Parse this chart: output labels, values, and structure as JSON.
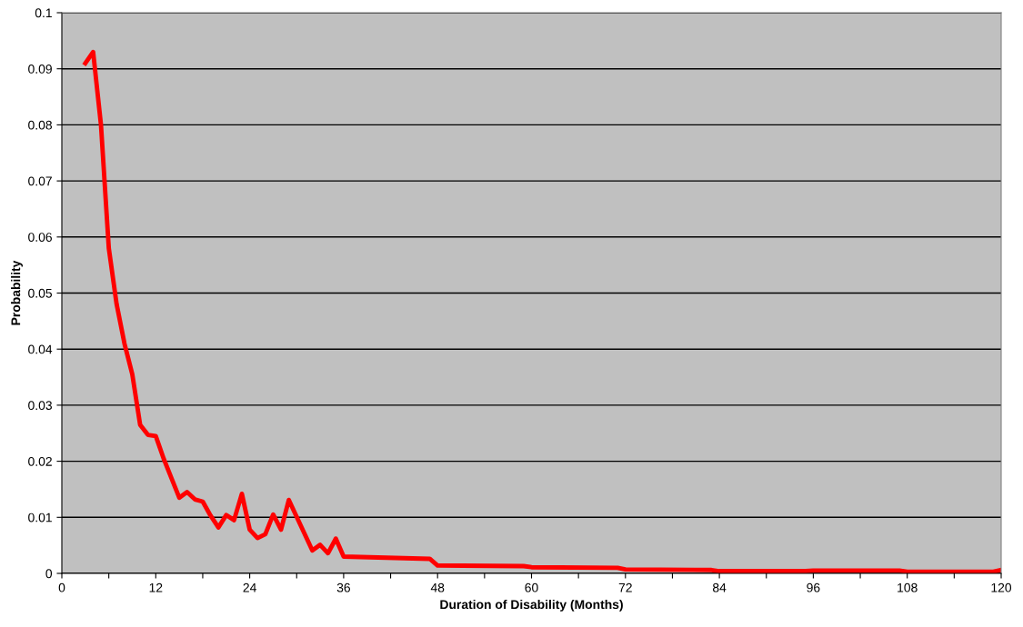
{
  "chart_data": {
    "type": "line",
    "xlabel": "Duration of Disability (Months)",
    "ylabel": "Probability",
    "series": [
      {
        "color": "#ff0000",
        "x": [
          3,
          4,
          5,
          6,
          7,
          8,
          9,
          10,
          11,
          12,
          13,
          14,
          15,
          16,
          17,
          18,
          19,
          20,
          21,
          22,
          23,
          24,
          25,
          26,
          27,
          28,
          29,
          30,
          31,
          32,
          33,
          34,
          35,
          36,
          47,
          48,
          59,
          60,
          71,
          72,
          83,
          84,
          95,
          96,
          107,
          108,
          119,
          120
        ],
        "values": [
          0.091,
          0.093,
          0.08,
          0.058,
          0.048,
          0.041,
          0.0355,
          0.0265,
          0.0247,
          0.0245,
          0.0205,
          0.017,
          0.0135,
          0.0145,
          0.0132,
          0.0128,
          0.0103,
          0.0082,
          0.0104,
          0.0095,
          0.0142,
          0.0078,
          0.0063,
          0.007,
          0.0105,
          0.0078,
          0.0131,
          0.0101,
          0.0071,
          0.0041,
          0.0051,
          0.0036,
          0.0062,
          0.003,
          0.0026,
          0.0014,
          0.0013,
          0.0011,
          0.001,
          0.0007,
          0.0006,
          0.0004,
          0.0004,
          0.0005,
          0.0005,
          0.0003,
          0.0003,
          0.0006
        ]
      }
    ],
    "xlim": [
      0,
      120
    ],
    "xticks": [
      0,
      {
        "value": 6,
        "label": null
      },
      12,
      {
        "value": 18,
        "label": null
      },
      24,
      {
        "value": 30,
        "label": null
      },
      36,
      {
        "value": 42,
        "label": null
      },
      48,
      {
        "value": 54,
        "label": null
      },
      60,
      {
        "value": 66,
        "label": null
      },
      72,
      {
        "value": 78,
        "label": null
      },
      84,
      {
        "value": 90,
        "label": null
      },
      96,
      {
        "value": 102,
        "label": null
      },
      108,
      {
        "value": 114,
        "label": null
      },
      120
    ],
    "ylim": [
      0,
      0.1
    ],
    "yticks": [
      0,
      0.01,
      0.02,
      0.03,
      0.04,
      0.05,
      0.06,
      0.07,
      0.08,
      0.09,
      0.1
    ],
    "grid": "y",
    "legend": false,
    "marker": "none",
    "line_style": "solid"
  }
}
